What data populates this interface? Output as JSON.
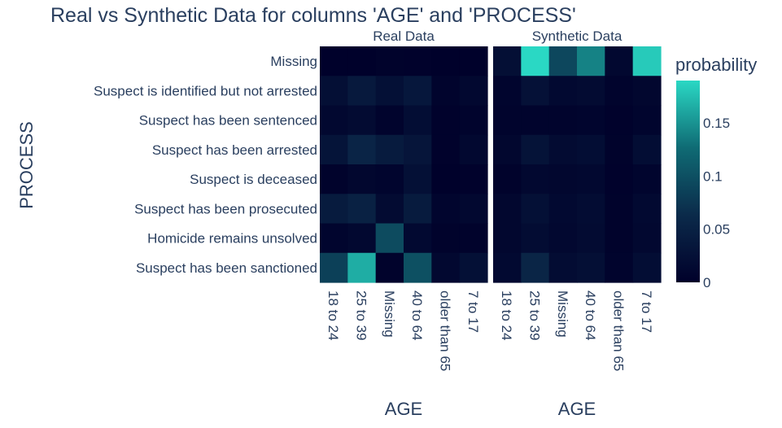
{
  "chart_data": {
    "type": "heatmap",
    "title": "Real vs Synthetic Data for columns 'AGE' and 'PROCESS'",
    "ylabel": "PROCESS",
    "x_categories": [
      "18 to 24",
      "25 to 39",
      "Missing",
      "40 to 64",
      "older than 65",
      "7 to 17"
    ],
    "y_categories": [
      "Missing",
      "Suspect is identified but not arrested",
      "Suspect has been sentenced",
      "Suspect has been arrested",
      "Suspect is deceased",
      "Suspect has been prosecuted",
      "Homicide remains unsolved",
      "Suspect has been sanctioned"
    ],
    "panels": [
      {
        "name": "Real Data",
        "xlabel": "AGE",
        "z": [
          [
            0.002,
            0.002,
            0.004,
            0.003,
            0.001,
            0.001
          ],
          [
            0.022,
            0.038,
            0.024,
            0.035,
            0.006,
            0.012
          ],
          [
            0.012,
            0.016,
            0.006,
            0.02,
            0.003,
            0.006
          ],
          [
            0.03,
            0.055,
            0.04,
            0.032,
            0.003,
            0.012
          ],
          [
            0.004,
            0.01,
            0.008,
            0.024,
            0.002,
            0.003
          ],
          [
            0.04,
            0.05,
            0.016,
            0.04,
            0.007,
            0.012
          ],
          [
            0.008,
            0.012,
            0.095,
            0.014,
            0.004,
            0.004
          ],
          [
            0.085,
            0.165,
            0.004,
            0.1,
            0.012,
            0.024
          ]
        ]
      },
      {
        "name": "Synthetic Data",
        "xlabel": "AGE",
        "z": [
          [
            0.022,
            0.19,
            0.092,
            0.14,
            0.012,
            0.182
          ],
          [
            0.008,
            0.026,
            0.014,
            0.016,
            0.006,
            0.01
          ],
          [
            0.006,
            0.006,
            0.006,
            0.008,
            0.003,
            0.008
          ],
          [
            0.01,
            0.028,
            0.016,
            0.02,
            0.004,
            0.02
          ],
          [
            0.004,
            0.012,
            0.01,
            0.012,
            0.003,
            0.008
          ],
          [
            0.01,
            0.024,
            0.014,
            0.018,
            0.004,
            0.014
          ],
          [
            0.01,
            0.018,
            0.012,
            0.016,
            0.004,
            0.012
          ],
          [
            0.014,
            0.056,
            0.018,
            0.022,
            0.006,
            0.02
          ]
        ]
      }
    ],
    "colorbar": {
      "title": "probability",
      "range": [
        0,
        0.19
      ],
      "tickvals": [
        0,
        0.05,
        0.1,
        0.15
      ],
      "ticktext": [
        "0",
        "0.05",
        "0.1",
        "0.15"
      ],
      "colorscale": [
        "#00002a",
        "#0b2a4a",
        "#0f6b74",
        "#2ad8c4"
      ]
    }
  }
}
